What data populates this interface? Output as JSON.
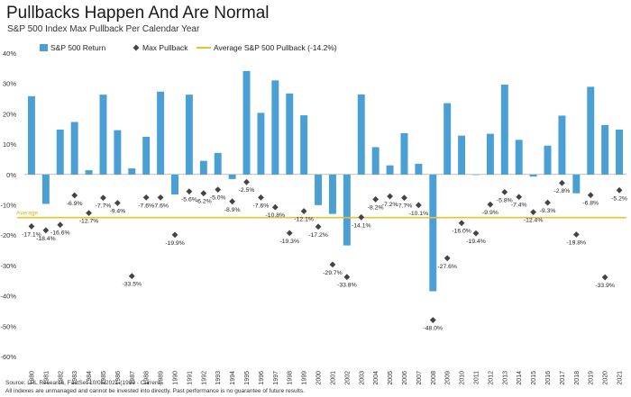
{
  "header": {
    "title": "Pullbacks Happen And Are Normal",
    "subtitle": "S&P 500 Index Max Pullback Per Calendar Year"
  },
  "footer": {
    "source": "Source: LPL Research, FactSet 10/05/2021 (1980 - Current)",
    "disclaimer": "All indexes are unmanaged and cannot be invested into directly. Past performance is no guarantee of future results."
  },
  "colors": {
    "bar": "#4a9fd5",
    "marker": "#444444",
    "average_line": "#e8c232",
    "average_text": "#d9b21e"
  },
  "chart_data": {
    "type": "bar",
    "categories": [
      "1980",
      "1981",
      "1982",
      "1983",
      "1984",
      "1985",
      "1986",
      "1987",
      "1988",
      "1989",
      "1990",
      "1991",
      "1992",
      "1993",
      "1994",
      "1995",
      "1996",
      "1997",
      "1998",
      "1999",
      "2000",
      "2001",
      "2002",
      "2003",
      "2004",
      "2005",
      "2006",
      "2007",
      "2008",
      "2009",
      "2010",
      "2011",
      "2012",
      "2013",
      "2014",
      "2015",
      "2016",
      "2017",
      "2018",
      "2019",
      "2020",
      "2021"
    ],
    "series": [
      {
        "name": "S&P 500 Return",
        "kind": "bar",
        "values": [
          25.8,
          -9.7,
          14.8,
          17.3,
          1.4,
          26.3,
          14.6,
          2.0,
          12.4,
          27.3,
          -6.6,
          26.3,
          4.5,
          7.1,
          -1.5,
          34.1,
          20.3,
          31.0,
          26.7,
          19.5,
          -10.1,
          -13.0,
          -23.4,
          26.4,
          9.0,
          3.0,
          13.6,
          3.5,
          -38.5,
          23.5,
          12.8,
          0.0,
          13.4,
          29.6,
          11.4,
          -0.7,
          9.5,
          19.4,
          -6.2,
          28.9,
          16.3,
          14.8
        ]
      },
      {
        "name": "Max Pullback",
        "kind": "marker",
        "values": [
          -17.1,
          -18.4,
          -16.6,
          -6.9,
          -12.7,
          -7.7,
          -9.4,
          -33.5,
          -7.6,
          -7.6,
          -19.9,
          -5.6,
          -6.2,
          -5.0,
          -8.9,
          -2.5,
          -7.6,
          -10.8,
          -19.3,
          -12.1,
          -17.2,
          -29.7,
          -33.8,
          -14.1,
          -8.2,
          -7.2,
          -7.7,
          -10.1,
          -48.0,
          -27.6,
          -16.0,
          -19.4,
          -9.9,
          -5.8,
          -7.4,
          -12.4,
          -9.3,
          -2.8,
          -19.8,
          -6.8,
          -33.9,
          -5.2
        ],
        "labels": [
          "-17.1%",
          "-18.4%",
          "-16.6%",
          "-6.9%",
          "-12.7%",
          "-7.7%",
          "-9.4%",
          "-33.5%",
          "-7.6%",
          "-7.6%",
          "-19.9%",
          "-5.6%",
          "-6.2%",
          "-5.0%",
          "-8.9%",
          "-2.5%",
          "-7.6%",
          "-10.8%",
          "-19.3%",
          "-12.1%",
          "-17.2%",
          "-29.7%",
          "-33.8%",
          "-14.1%",
          "-8.2%",
          "-7.2%",
          "-7.7%",
          "-10.1%",
          "-48.0%",
          "-27.6%",
          "-16.0%",
          "-19.4%",
          "-9.9%",
          "-5.8%",
          "-7.4%",
          "-12.4%",
          "-9.3%",
          "-2.8%",
          "-19.8%",
          "-6.8%",
          "-33.9%",
          "-5.2%"
        ]
      }
    ],
    "average": {
      "value": -14.2,
      "legend": "Average S&P 500 Pullback (-14.2%)",
      "label": "Average"
    },
    "y_ticks": [
      40,
      30,
      20,
      10,
      0,
      -10,
      -20,
      -30,
      -40,
      -50,
      -60
    ],
    "y_tick_labels": [
      "40%",
      "30%",
      "20%",
      "10%",
      "0%",
      "-10%",
      "-20%",
      "-30%",
      "-40%",
      "-50%",
      "-60%"
    ],
    "ylim": [
      -60,
      40
    ],
    "grid": false,
    "legend_position": "top-left"
  }
}
